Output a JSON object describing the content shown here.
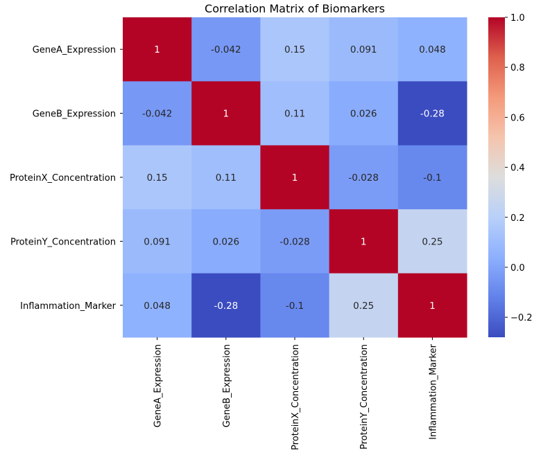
{
  "chart_data": {
    "type": "heatmap",
    "title": "Correlation Matrix of Biomarkers",
    "rows": [
      "GeneA_Expression",
      "GeneB_Expression",
      "ProteinX_Concentration",
      "ProteinY_Concentration",
      "Inflammation_Marker"
    ],
    "columns": [
      "GeneA_Expression",
      "GeneB_Expression",
      "ProteinX_Concentration",
      "ProteinY_Concentration",
      "Inflammation_Marker"
    ],
    "values": [
      [
        1,
        -0.042,
        0.15,
        0.091,
        0.048
      ],
      [
        -0.042,
        1,
        0.11,
        0.026,
        -0.28
      ],
      [
        0.15,
        0.11,
        1,
        -0.028,
        -0.1
      ],
      [
        0.091,
        0.026,
        -0.028,
        1,
        0.25
      ],
      [
        0.048,
        -0.28,
        -0.1,
        0.25,
        1
      ]
    ],
    "annotations": [
      [
        "1",
        "-0.042",
        "0.15",
        "0.091",
        "0.048"
      ],
      [
        "-0.042",
        "1",
        "0.11",
        "0.026",
        "-0.28"
      ],
      [
        "0.15",
        "0.11",
        "1",
        "-0.028",
        "-0.1"
      ],
      [
        "0.091",
        "0.026",
        "-0.028",
        "1",
        "0.25"
      ],
      [
        "0.048",
        "-0.28",
        "-0.1",
        "0.25",
        "1"
      ]
    ],
    "colormap": "coolwarm",
    "colorbar": {
      "range": [
        -0.28,
        1.0
      ],
      "ticks": [
        -0.2,
        0.0,
        0.2,
        0.4,
        0.6,
        0.8,
        1.0
      ],
      "tick_labels": [
        "−0.2",
        "0.0",
        "0.2",
        "0.4",
        "0.6",
        "0.8",
        "1.0"
      ],
      "placement": "right"
    }
  }
}
